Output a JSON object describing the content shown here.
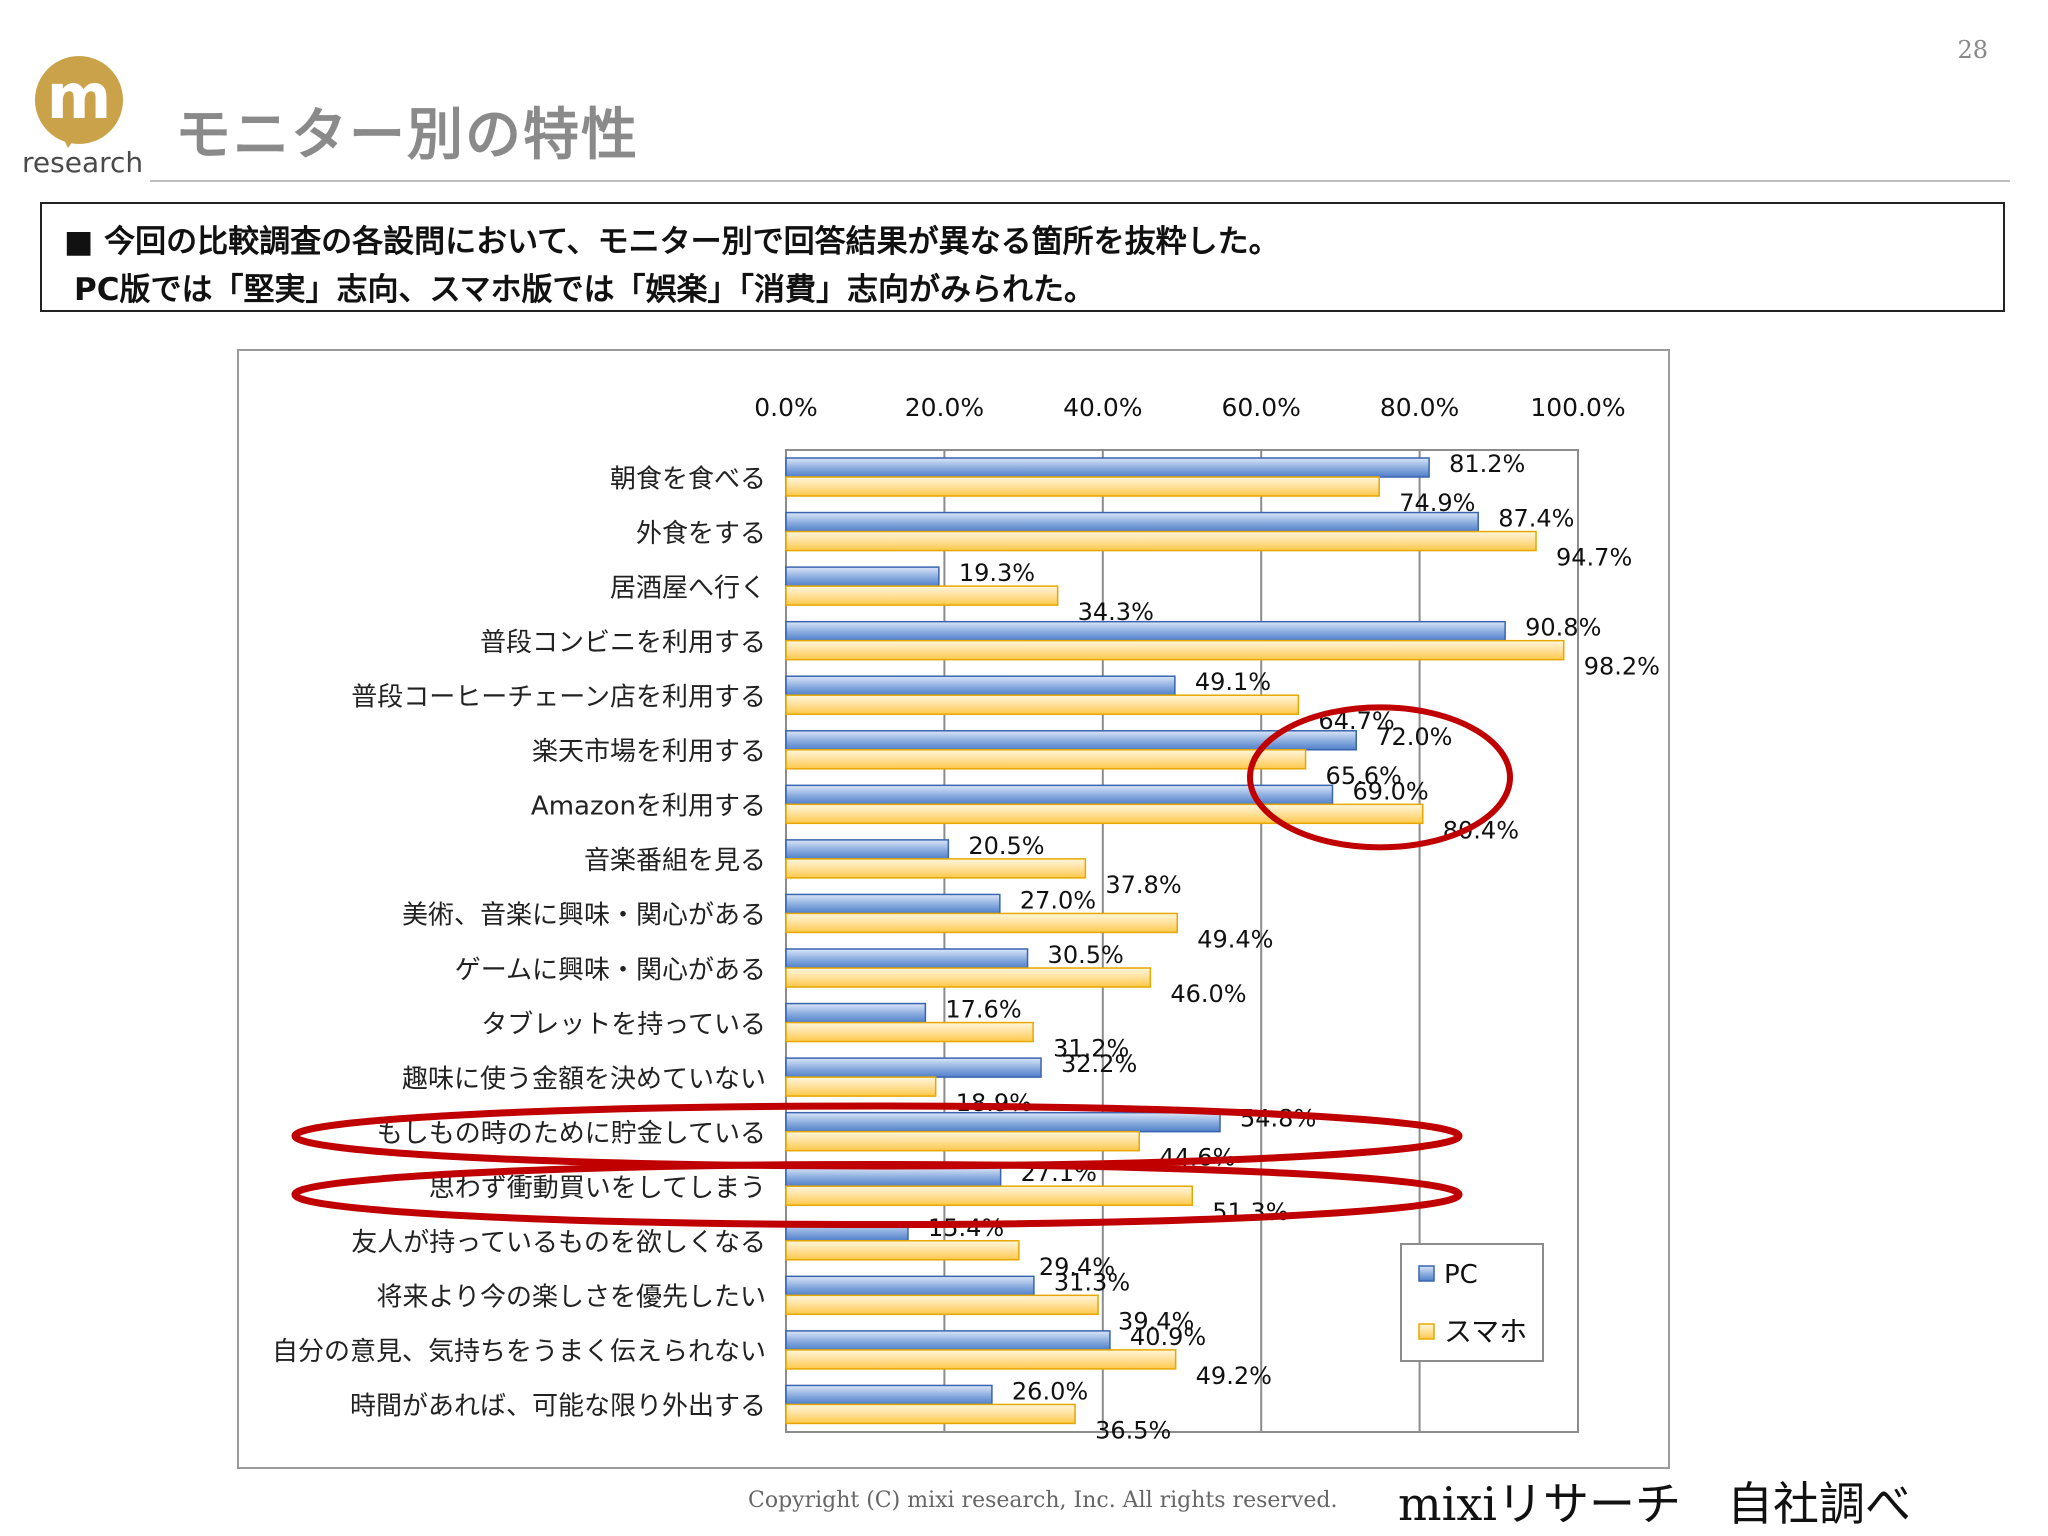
{
  "page_number": "28",
  "logo": {
    "mark": "m",
    "text": "research"
  },
  "title": "モニター別の特性",
  "summary": {
    "line1": "■ 今回の比較調査の各設問において、モニター別で回答結果が異なる箇所を抜粋した。",
    "line2": "PC版では「堅実」志向、スマホ版では「娯楽」「消費」志向がみられた。"
  },
  "chart_data": {
    "type": "bar",
    "orientation": "horizontal",
    "xlim": [
      0,
      100
    ],
    "x_ticks": [
      "0.0%",
      "20.0%",
      "40.0%",
      "60.0%",
      "80.0%",
      "100.0%"
    ],
    "x_axis_position": "top",
    "grid": true,
    "legend_position": "bottom-right",
    "categories": [
      "朝食を食べる",
      "外食をする",
      "居酒屋へ行く",
      "普段コンビニを利用する",
      "普段コーヒーチェーン店を利用する",
      "楽天市場を利用する",
      "Amazonを利用する",
      "音楽番組を見る",
      "美術、音楽に興味・関心がある",
      "ゲームに興味・関心がある",
      "タブレットを持っている",
      "趣味に使う金額を決めていない",
      "もしもの時のために貯金している",
      "思わず衝動買いをしてしまう",
      "友人が持っているものを欲しくなる",
      "将来より今の楽しさを優先したい",
      "自分の意見、気持ちをうまく伝えられない",
      "時間があれば、可能な限り外出する"
    ],
    "series": [
      {
        "name": "PC",
        "color": "#4472c4",
        "values": [
          81.2,
          87.4,
          19.3,
          90.8,
          49.1,
          72.0,
          69.0,
          20.5,
          27.0,
          30.5,
          17.6,
          32.2,
          54.8,
          27.1,
          15.4,
          31.3,
          40.9,
          26.0
        ],
        "labels": [
          "81.2%",
          "87.4%",
          "19.3%",
          "90.8%",
          "49.1%",
          "72.0%",
          "69.0%",
          "20.5%",
          "27.0%",
          "30.5%",
          "17.6%",
          "32.2%",
          "54.8%",
          "27.1%",
          "15.4%",
          "31.3%",
          "40.9%",
          "26.0%"
        ]
      },
      {
        "name": "スマホ",
        "color": "#ffc000",
        "values": [
          74.9,
          94.7,
          34.3,
          98.2,
          64.7,
          65.6,
          80.4,
          37.8,
          49.4,
          46.0,
          31.2,
          18.9,
          44.6,
          51.3,
          29.4,
          39.4,
          49.2,
          36.5
        ],
        "labels": [
          "74.9%",
          "94.7%",
          "34.3%",
          "98.2%",
          "64.7%",
          "65.6%",
          "80.4%",
          "37.8%",
          "49.4%",
          "46.0%",
          "31.2%",
          "18.9%",
          "44.6%",
          "51.3%",
          "29.4%",
          "39.4%",
          "49.2%",
          "36.5%"
        ]
      }
    ],
    "highlight_color": "#c00000"
  },
  "footer": {
    "copyright": "Copyright (C) mixi research, Inc. All rights reserved.",
    "source": "mixiリサーチ　自社調べ"
  }
}
